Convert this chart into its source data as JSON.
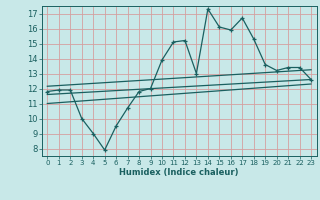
{
  "xlabel": "Humidex (Indice chaleur)",
  "bg_color": "#c8e8e8",
  "grid_color": "#d4a0a0",
  "line_color": "#1a6060",
  "xlim": [
    -0.5,
    23.5
  ],
  "ylim": [
    7.5,
    17.5
  ],
  "xticks": [
    0,
    1,
    2,
    3,
    4,
    5,
    6,
    7,
    8,
    9,
    10,
    11,
    12,
    13,
    14,
    15,
    16,
    17,
    18,
    19,
    20,
    21,
    22,
    23
  ],
  "yticks": [
    8,
    9,
    10,
    11,
    12,
    13,
    14,
    15,
    16,
    17
  ],
  "main_x": [
    0,
    1,
    2,
    3,
    4,
    5,
    6,
    7,
    8,
    9,
    10,
    11,
    12,
    13,
    14,
    15,
    16,
    17,
    18,
    19,
    20,
    21,
    22,
    23
  ],
  "main_y": [
    11.8,
    11.9,
    11.9,
    10.0,
    9.0,
    7.9,
    9.5,
    10.7,
    11.8,
    12.0,
    13.9,
    15.1,
    15.2,
    13.0,
    17.3,
    16.1,
    15.9,
    16.7,
    15.3,
    13.6,
    13.2,
    13.4,
    13.4,
    12.6
  ],
  "trend1_x": [
    0,
    23
  ],
  "trend1_y": [
    12.15,
    13.25
  ],
  "trend2_x": [
    0,
    23
  ],
  "trend2_y": [
    11.6,
    12.6
  ],
  "trend3_x": [
    0,
    23
  ],
  "trend3_y": [
    11.0,
    12.3
  ]
}
